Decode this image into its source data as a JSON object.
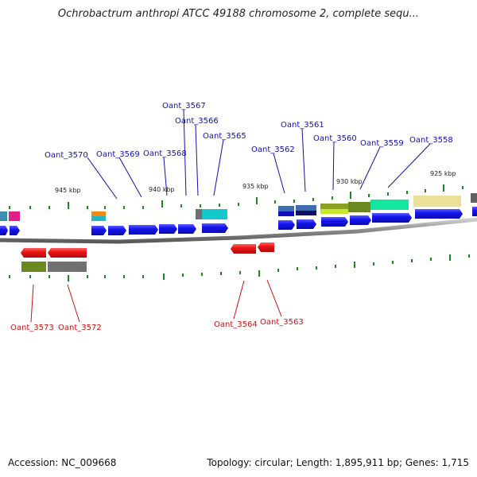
{
  "title": "Ochrobactrum anthropi ATCC 49188 chromosome 2, complete sequ...",
  "footer": {
    "accession": "Accession: NC_009668",
    "summary": "Topology: circular; Length: 1,895,911 bp; Genes: 1,715"
  },
  "scale_labels": [
    {
      "text": "945 kbp"
    },
    {
      "text": "940 kbp"
    },
    {
      "text": "935 kbp"
    },
    {
      "text": "930 kbp"
    },
    {
      "text": "925 kbp"
    }
  ],
  "forward_genes": [
    {
      "name": "Oant_3570"
    },
    {
      "name": "Oant_3569"
    },
    {
      "name": "Oant_3568"
    },
    {
      "name": "Oant_3567"
    },
    {
      "name": "Oant_3566"
    },
    {
      "name": "Oant_3565"
    },
    {
      "name": "Oant_3562"
    },
    {
      "name": "Oant_3561"
    },
    {
      "name": "Oant_3560"
    },
    {
      "name": "Oant_3559"
    },
    {
      "name": "Oant_3558"
    }
  ],
  "reverse_genes": [
    {
      "name": "Oant_3573"
    },
    {
      "name": "Oant_3572"
    },
    {
      "name": "Oant_3564"
    },
    {
      "name": "Oant_3563"
    }
  ],
  "colors": {
    "forward_label": "#1010b0",
    "reverse_label": "#d01010",
    "forward_gene": "#1010e8",
    "reverse_gene": "#e81010",
    "backbone": "#888888"
  }
}
